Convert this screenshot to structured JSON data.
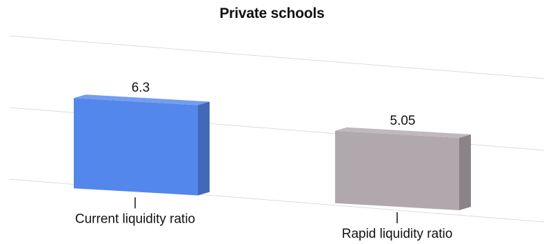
{
  "chart_data": {
    "type": "bar",
    "title": "Private schools",
    "categories": [
      "Current liquidity ratio",
      "Rapid liquidity ratio"
    ],
    "values": [
      6.3,
      5.05
    ],
    "value_labels": [
      "6.3",
      "5.05"
    ],
    "ylim": [
      0,
      10
    ],
    "grid": true,
    "legend": "none",
    "colors": [
      "#5487ec",
      "#b1a8ae"
    ]
  }
}
